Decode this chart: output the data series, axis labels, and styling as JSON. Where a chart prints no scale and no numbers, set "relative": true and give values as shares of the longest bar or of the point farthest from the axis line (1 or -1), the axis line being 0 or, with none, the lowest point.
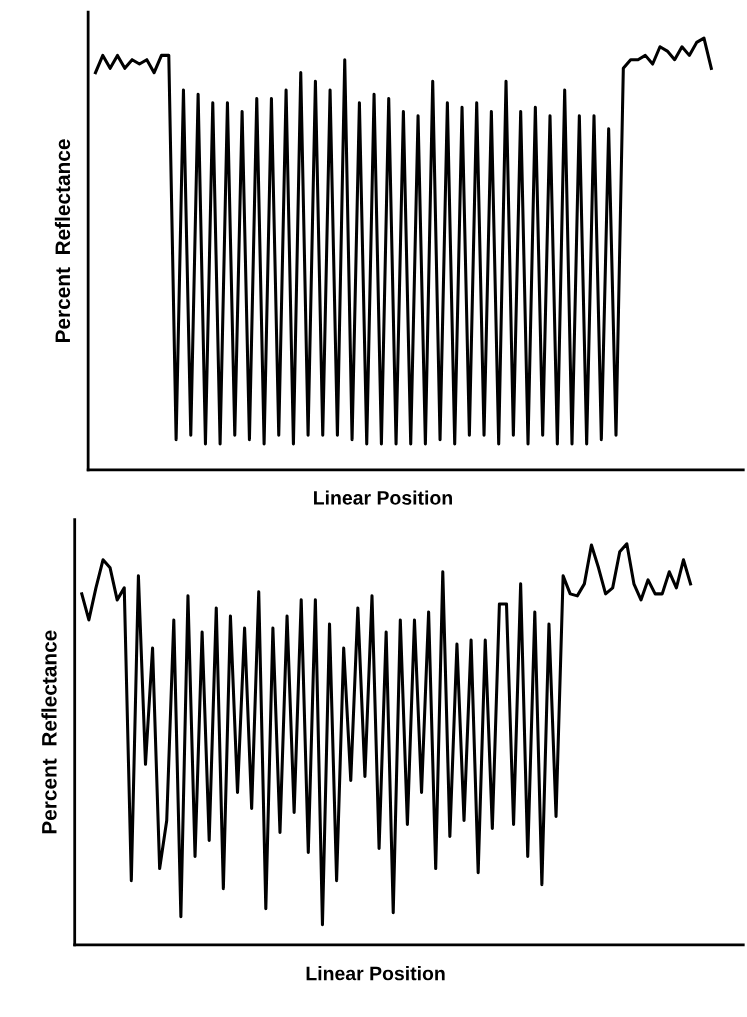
{
  "chart_data": [
    {
      "type": "line",
      "relative": true,
      "ylabel": "Percent  Reflectance",
      "xlabel": "Linear Position",
      "tick_labels": false,
      "marker": "none",
      "line_style": "solid",
      "categories": [
        null,
        null,
        null,
        null,
        null,
        null,
        null,
        null,
        null,
        null,
        null,
        null,
        null,
        null,
        null,
        null,
        null,
        null,
        null,
        null,
        null,
        null,
        null,
        null,
        null,
        null,
        null,
        null,
        null,
        null,
        null,
        null,
        null,
        null,
        null,
        null,
        null,
        null,
        null,
        null,
        null,
        null,
        null,
        null,
        null,
        null,
        null,
        null,
        null,
        null,
        null,
        null,
        null,
        null,
        null,
        null,
        null,
        null,
        null,
        null,
        null,
        null,
        null,
        null,
        null,
        null,
        null,
        null,
        null,
        null,
        null,
        null,
        null,
        null,
        null,
        null,
        null,
        null,
        null,
        null,
        null,
        null,
        null,
        null,
        null
      ],
      "series": [
        {
          "color": "#000000",
          "values": [
            0.92,
            0.96,
            0.93,
            0.96,
            0.93,
            0.95,
            0.94,
            0.95,
            0.92,
            0.96,
            0.96,
            0.07,
            0.88,
            0.08,
            0.87,
            0.06,
            0.85,
            0.06,
            0.85,
            0.08,
            0.83,
            0.07,
            0.86,
            0.06,
            0.86,
            0.08,
            0.88,
            0.06,
            0.92,
            0.08,
            0.9,
            0.08,
            0.88,
            0.08,
            0.95,
            0.07,
            0.85,
            0.06,
            0.87,
            0.06,
            0.86,
            0.06,
            0.83,
            0.06,
            0.82,
            0.06,
            0.9,
            0.07,
            0.85,
            0.06,
            0.84,
            0.08,
            0.85,
            0.08,
            0.83,
            0.06,
            0.9,
            0.08,
            0.83,
            0.06,
            0.84,
            0.08,
            0.82,
            0.06,
            0.88,
            0.06,
            0.82,
            0.06,
            0.82,
            0.07,
            0.79,
            0.08,
            0.93,
            0.95,
            0.95,
            0.96,
            0.94,
            0.98,
            0.97,
            0.95,
            0.98,
            0.96,
            0.99,
            1.0,
            0.93
          ]
        }
      ]
    },
    {
      "type": "line",
      "relative": true,
      "ylabel": "Percent  Reflectance",
      "xlabel": "Linear Position",
      "tick_labels": false,
      "marker": "none",
      "line_style": "solid",
      "categories": [
        null,
        null,
        null,
        null,
        null,
        null,
        null,
        null,
        null,
        null,
        null,
        null,
        null,
        null,
        null,
        null,
        null,
        null,
        null,
        null,
        null,
        null,
        null,
        null,
        null,
        null,
        null,
        null,
        null,
        null,
        null,
        null,
        null,
        null,
        null,
        null,
        null,
        null,
        null,
        null,
        null,
        null,
        null,
        null,
        null,
        null,
        null,
        null,
        null,
        null,
        null,
        null,
        null,
        null,
        null,
        null,
        null,
        null,
        null,
        null,
        null,
        null,
        null,
        null,
        null,
        null,
        null,
        null,
        null,
        null,
        null,
        null,
        null,
        null,
        null,
        null,
        null,
        null,
        null,
        null,
        null,
        null,
        null,
        null,
        null,
        null,
        null
      ],
      "series": [
        {
          "color": "#000000",
          "values": [
            0.875,
            0.81,
            0.89,
            0.96,
            0.94,
            0.86,
            0.89,
            0.16,
            0.92,
            0.45,
            0.74,
            0.19,
            0.31,
            0.81,
            0.07,
            0.87,
            0.22,
            0.78,
            0.26,
            0.84,
            0.14,
            0.82,
            0.38,
            0.79,
            0.34,
            0.88,
            0.09,
            0.79,
            0.28,
            0.82,
            0.33,
            0.86,
            0.23,
            0.86,
            0.05,
            0.8,
            0.16,
            0.74,
            0.41,
            0.84,
            0.42,
            0.87,
            0.24,
            0.78,
            0.08,
            0.81,
            0.3,
            0.81,
            0.38,
            0.83,
            0.19,
            0.93,
            0.27,
            0.75,
            0.31,
            0.76,
            0.18,
            0.76,
            0.29,
            0.85,
            0.85,
            0.3,
            0.9,
            0.22,
            0.83,
            0.15,
            0.8,
            0.32,
            0.92,
            0.875,
            0.87,
            0.9,
            0.997,
            0.94,
            0.875,
            0.89,
            0.98,
            1.0,
            0.9,
            0.86,
            0.91,
            0.875,
            0.875,
            0.93,
            0.89,
            0.96,
            0.9
          ]
        }
      ]
    }
  ]
}
